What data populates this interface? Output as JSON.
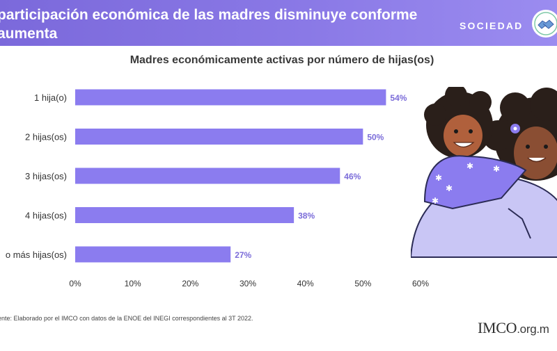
{
  "header": {
    "title": "participación económica de las madres disminuye conforme aumenta\número de hijas(os)",
    "section": "SOCIEDAD",
    "badge_icon": "handshake-icon"
  },
  "colors": {
    "header": "#8575e2",
    "bar": "#8b7cef",
    "value_label": "#7b6cd9",
    "text": "#333333"
  },
  "chart_data": {
    "type": "bar",
    "orientation": "horizontal",
    "title": "Madres económicamente activas por número de hijas(os)",
    "categories": [
      "1 hija(o)",
      "2 hijas(os)",
      "3 hijas(os)",
      "4 hijas(os)",
      "o más hijas(os)"
    ],
    "values": [
      54,
      50,
      46,
      38,
      27
    ],
    "value_labels": [
      "54%",
      "50%",
      "46%",
      "38%",
      "27%"
    ],
    "xlim": [
      0,
      60
    ],
    "xticks": [
      0,
      10,
      20,
      30,
      40,
      50,
      60
    ],
    "xtick_labels": [
      "0%",
      "10%",
      "20%",
      "30%",
      "40%",
      "50%",
      "60%"
    ],
    "grid": false,
    "legend": "none"
  },
  "footer": {
    "source": "uente:  Elaborado por el IMCO con datos de la ENOE del INEGI  correspondientes al 3T 2022.",
    "logo_mark": "IMCO",
    "logo_domain": ".org.m"
  },
  "illustration": {
    "icon": "mother-and-child-illustration"
  }
}
